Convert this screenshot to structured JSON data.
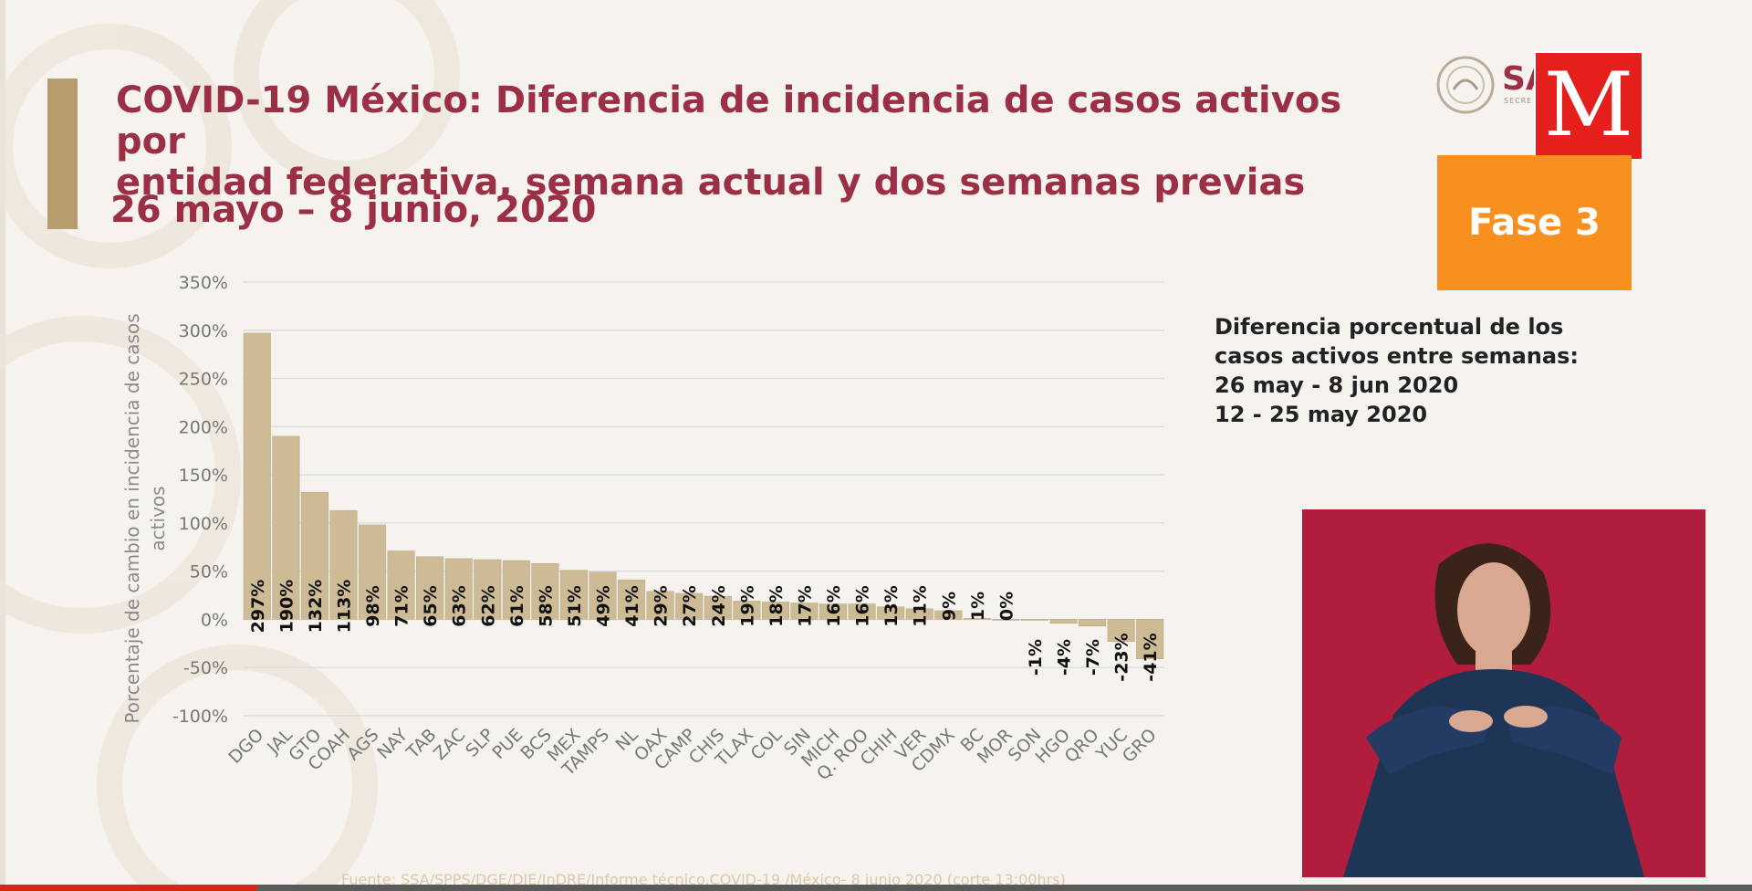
{
  "header": {
    "title_line1": "COVID-19 México: Diferencia de incidencia de casos activos por",
    "title_line2": "entidad federativa, semana actual y dos semanas previas",
    "subtitle": "26 mayo – 8 junio, 2020"
  },
  "logos": {
    "gov_text": "SA",
    "gov_small": "SECRE",
    "m_logo": "M"
  },
  "phase_badge": "Fase 3",
  "legend": {
    "line1": "Diferencia porcentual de los",
    "line2": "casos activos entre semanas:",
    "line3": "26 may - 8 jun 2020",
    "line4": "12 - 25 may 2020"
  },
  "source": "Fuente: SSA/SPPS/DGE/DIE/InDRE/Informe técnico.COVID-19 /México- 8 junio  2020 (corte 13:00hrs)",
  "colors": {
    "title": "#9b2f45",
    "bar": "#cdbb96",
    "bar_stroke": "#b9a67f",
    "badge": "#f7901e",
    "m_logo": "#e5201c",
    "interpreter_bg": "#b11e3d"
  },
  "chart_data": {
    "type": "bar",
    "title": "COVID-19 México: Diferencia de incidencia de casos activos por entidad federativa, semana actual y dos semanas previas",
    "ylabel": "Porcentaje de cambio en incidencia de casos activos",
    "ylabel_line1": "Porcentaje de cambio en incidencia de casos",
    "ylabel_line2": "activos",
    "ylim": [
      -100,
      350
    ],
    "yticks": [
      350,
      300,
      250,
      200,
      150,
      100,
      50,
      0,
      -50,
      -100
    ],
    "ytick_labels": [
      "350%",
      "300%",
      "250%",
      "200%",
      "150%",
      "100%",
      "50%",
      "0%",
      "-50%",
      "-100%"
    ],
    "grid": true,
    "categories": [
      "DGO",
      "JAL",
      "GTO",
      "COAH",
      "AGS",
      "NAY",
      "TAB",
      "ZAC",
      "SLP",
      "PUE",
      "BCS",
      "MEX",
      "TAMPS",
      "NL",
      "OAX",
      "CAMP",
      "CHIS",
      "TLAX",
      "COL",
      "SIN",
      "MICH",
      "Q. ROO",
      "CHIH",
      "VER",
      "CDMX",
      "BC",
      "MOR",
      "SON",
      "HGO",
      "QRO",
      "YUC",
      "GRO"
    ],
    "values": [
      297,
      190,
      132,
      113,
      98,
      71,
      65,
      63,
      62,
      61,
      58,
      51,
      49,
      41,
      29,
      27,
      24,
      19,
      18,
      17,
      16,
      16,
      13,
      11,
      9,
      1,
      0,
      -1,
      -4,
      -7,
      -23,
      -41
    ],
    "data_labels": [
      "297%",
      "190%",
      "132%",
      "113%",
      "98%",
      "71%",
      "65%",
      "63%",
      "62%",
      "61%",
      "58%",
      "51%",
      "49%",
      "41%",
      "29%",
      "27%",
      "24%",
      "19%",
      "18%",
      "17%",
      "16%",
      "16%",
      "13%",
      "11%",
      "9%",
      "1%",
      "0%",
      "-1%",
      "-4%",
      "-7%",
      "-23%",
      "-41%"
    ]
  }
}
